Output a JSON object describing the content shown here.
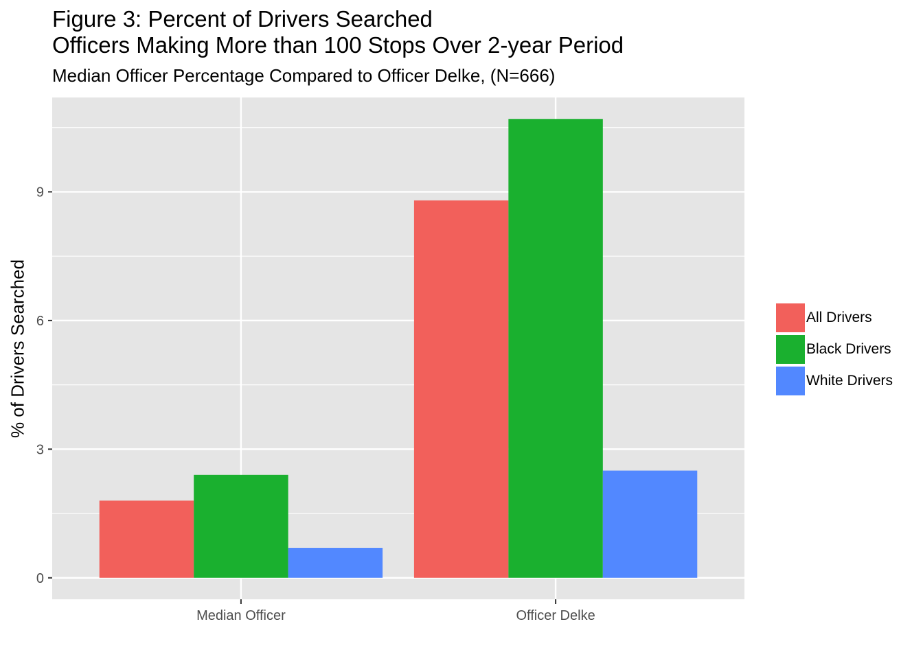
{
  "chart_data": {
    "type": "bar",
    "title": [
      "Figure 3: Percent of Drivers Searched",
      "Officers Making More than 100 Stops Over 2-year Period"
    ],
    "subtitle": "Median Officer Percentage Compared to Officer Delke, (N=666)",
    "xlabel": "",
    "ylabel": "% of Drivers Searched",
    "categories": [
      "Median Officer",
      "Officer Delke"
    ],
    "series": [
      {
        "name": "All Drivers",
        "color": "#F2605B",
        "values": [
          1.8,
          8.8
        ]
      },
      {
        "name": "Black Drivers",
        "color": "#1AB02F",
        "values": [
          2.4,
          10.7
        ]
      },
      {
        "name": "White Drivers",
        "color": "#5288FF",
        "values": [
          0.7,
          2.5
        ]
      }
    ],
    "yticks": [
      0,
      3,
      6,
      9
    ],
    "ylim": [
      -0.5,
      11.2
    ],
    "grid": true,
    "legend_position": "right",
    "panel_background": "#E5E5E5",
    "grid_color": "#FFFFFF"
  }
}
